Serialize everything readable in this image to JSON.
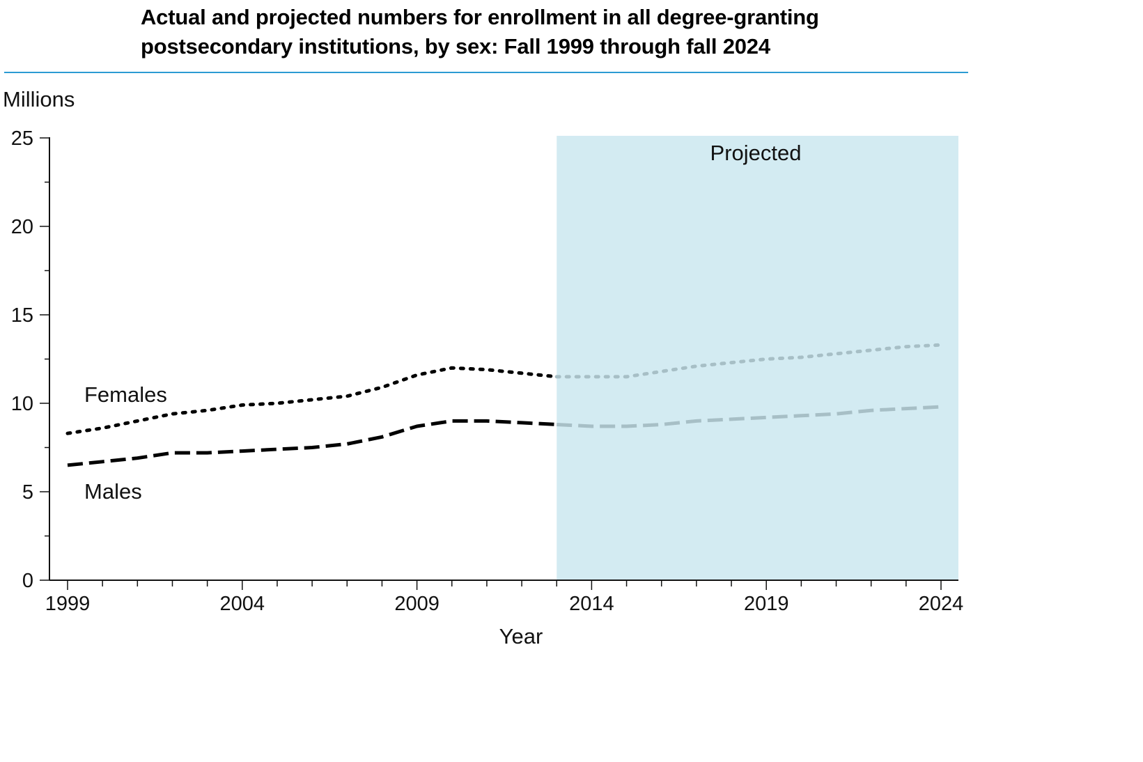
{
  "chart_data": {
    "type": "line",
    "title": "Actual and projected numbers for enrollment in all degree-granting postsecondary institutions, by sex: Fall 1999 through fall 2024",
    "xlabel": "Year",
    "ylabel": "Millions",
    "xlim": [
      1999,
      2024
    ],
    "ylim": [
      0,
      25
    ],
    "y_ticks": [
      0,
      5,
      10,
      15,
      20,
      25
    ],
    "x_ticks": [
      1999,
      2004,
      2009,
      2014,
      2019,
      2024
    ],
    "projection_start": 2013,
    "projection_label": "Projected",
    "projection_color": "#d3ebf2",
    "grid": false,
    "x": [
      1999,
      2000,
      2001,
      2002,
      2003,
      2004,
      2005,
      2006,
      2007,
      2008,
      2009,
      2010,
      2011,
      2012,
      2013,
      2014,
      2015,
      2016,
      2017,
      2018,
      2019,
      2020,
      2021,
      2022,
      2023,
      2024
    ],
    "series": [
      {
        "name": "Females",
        "style": "dotted",
        "actual_color": "#000000",
        "projected_color": "#a7bfc6",
        "values": [
          8.3,
          8.6,
          9.0,
          9.4,
          9.6,
          9.9,
          10.0,
          10.2,
          10.4,
          10.9,
          11.6,
          12.0,
          11.9,
          11.7,
          11.5,
          11.5,
          11.5,
          11.8,
          12.1,
          12.3,
          12.5,
          12.6,
          12.8,
          13.0,
          13.2,
          13.3
        ]
      },
      {
        "name": "Males",
        "style": "dashed",
        "actual_color": "#000000",
        "projected_color": "#a7bfc6",
        "values": [
          6.5,
          6.7,
          6.9,
          7.2,
          7.2,
          7.3,
          7.4,
          7.5,
          7.7,
          8.1,
          8.7,
          9.0,
          9.0,
          8.9,
          8.8,
          8.7,
          8.7,
          8.8,
          9.0,
          9.1,
          9.2,
          9.3,
          9.4,
          9.6,
          9.7,
          9.8
        ]
      }
    ]
  }
}
